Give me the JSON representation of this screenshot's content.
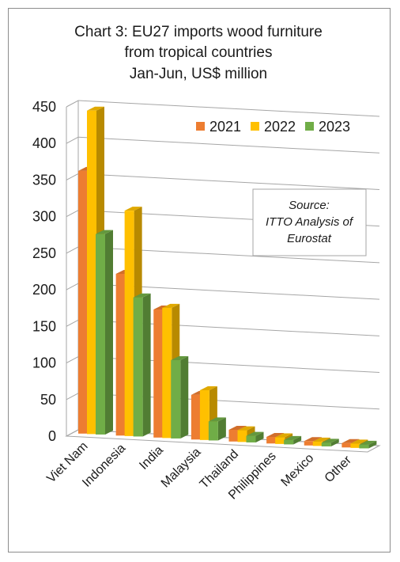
{
  "chart_data": {
    "type": "bar",
    "title": [
      "Chart 3: EU27 imports wood furniture",
      "from tropical countries",
      "Jan-Jun, US$ million"
    ],
    "categories": [
      "Viet Nam",
      "Indonesia",
      "India",
      "Malaysia",
      "Thailand",
      "Philippines",
      "Mexico",
      "Other"
    ],
    "series": [
      {
        "name": "2021",
        "color": "#ed7d31",
        "values": [
          359,
          221,
          175,
          61,
          16,
          9,
          6,
          6
        ]
      },
      {
        "name": "2022",
        "color": "#ffc000",
        "values": [
          442,
          308,
          178,
          68,
          16,
          9,
          6,
          6
        ]
      },
      {
        "name": "2023",
        "color": "#70ad47",
        "values": [
          274,
          190,
          107,
          26,
          9,
          6,
          5,
          5
        ]
      }
    ],
    "y_ticks": [
      "450",
      "400",
      "350",
      "300",
      "250",
      "200",
      "150",
      "100",
      "50",
      "0"
    ],
    "ylim": [
      0,
      450
    ],
    "legend_position": "top-right",
    "grid": true,
    "note": [
      "Source:",
      "ITTO Analysis of",
      "Eurostat"
    ]
  }
}
